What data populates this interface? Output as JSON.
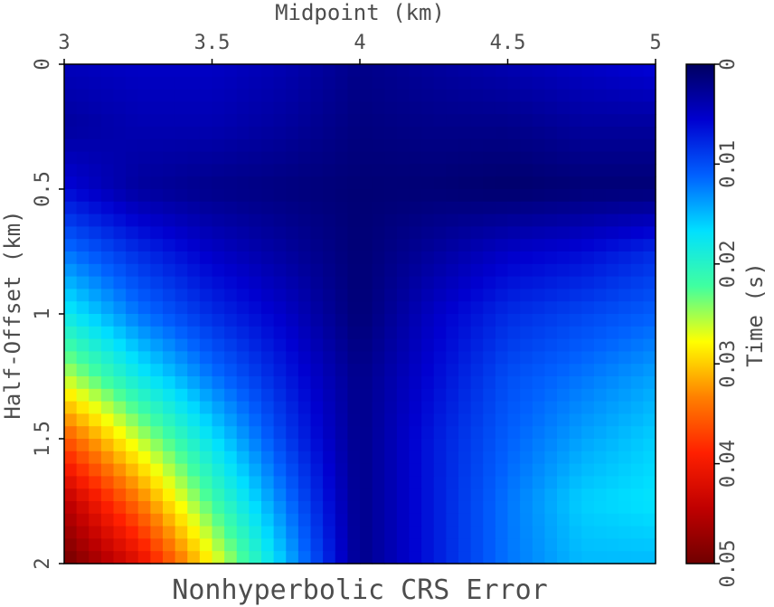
{
  "chart_data": {
    "type": "heatmap",
    "title": "Nonhyperbolic CRS Error",
    "xlabel": "Midpoint (km)",
    "ylabel": "Half-Offset (km)",
    "xlim": [
      3,
      5
    ],
    "ylim": [
      0,
      2
    ],
    "y_inverted": true,
    "x_axis_position": "top",
    "xticks": [
      "3",
      "3.5",
      "4",
      "4.5",
      "5"
    ],
    "yticks": [
      "0",
      "0.5",
      "1",
      "1.5",
      "2"
    ],
    "colorbar": {
      "label": "Time (s)",
      "range": [
        0,
        0.05
      ],
      "ticks": [
        "0",
        "0.01",
        "0.02",
        "0.03",
        "0.04",
        "0.05"
      ],
      "colormap": "jet-reversed",
      "stops": [
        "#000060",
        "#0000d0",
        "#0060ff",
        "#00e0ff",
        "#40ffa0",
        "#ffff00",
        "#ff8000",
        "#ff2000",
        "#c00000",
        "#700000"
      ]
    },
    "grid": false,
    "samples_x": [
      3.0,
      3.25,
      3.5,
      3.75,
      4.0,
      4.25,
      4.5,
      4.75,
      5.0
    ],
    "samples_y": [
      0.0,
      0.25,
      0.5,
      0.75,
      1.0,
      1.25,
      1.5,
      1.75,
      2.0
    ],
    "values": [
      [
        0.0045,
        0.005,
        0.005,
        0.004,
        0.002,
        0.003,
        0.004,
        0.005,
        0.006
      ],
      [
        0.003,
        0.004,
        0.004,
        0.003,
        0.0015,
        0.002,
        0.002,
        0.003,
        0.003
      ],
      [
        0.006,
        0.003,
        0.002,
        0.0015,
        0.001,
        0.001,
        0.0005,
        0.001,
        0.001
      ],
      [
        0.012,
        0.008,
        0.005,
        0.003,
        0.001,
        0.003,
        0.005,
        0.006,
        0.008
      ],
      [
        0.018,
        0.012,
        0.008,
        0.005,
        0.001,
        0.005,
        0.008,
        0.0095,
        0.011
      ],
      [
        0.026,
        0.018,
        0.012,
        0.007,
        0.002,
        0.006,
        0.01,
        0.012,
        0.014
      ],
      [
        0.036,
        0.026,
        0.017,
        0.009,
        0.002,
        0.007,
        0.011,
        0.014,
        0.016
      ],
      [
        0.045,
        0.034,
        0.022,
        0.012,
        0.002,
        0.007,
        0.012,
        0.016,
        0.017
      ],
      [
        0.05,
        0.042,
        0.028,
        0.015,
        0.002,
        0.007,
        0.012,
        0.015,
        0.015
      ]
    ]
  }
}
